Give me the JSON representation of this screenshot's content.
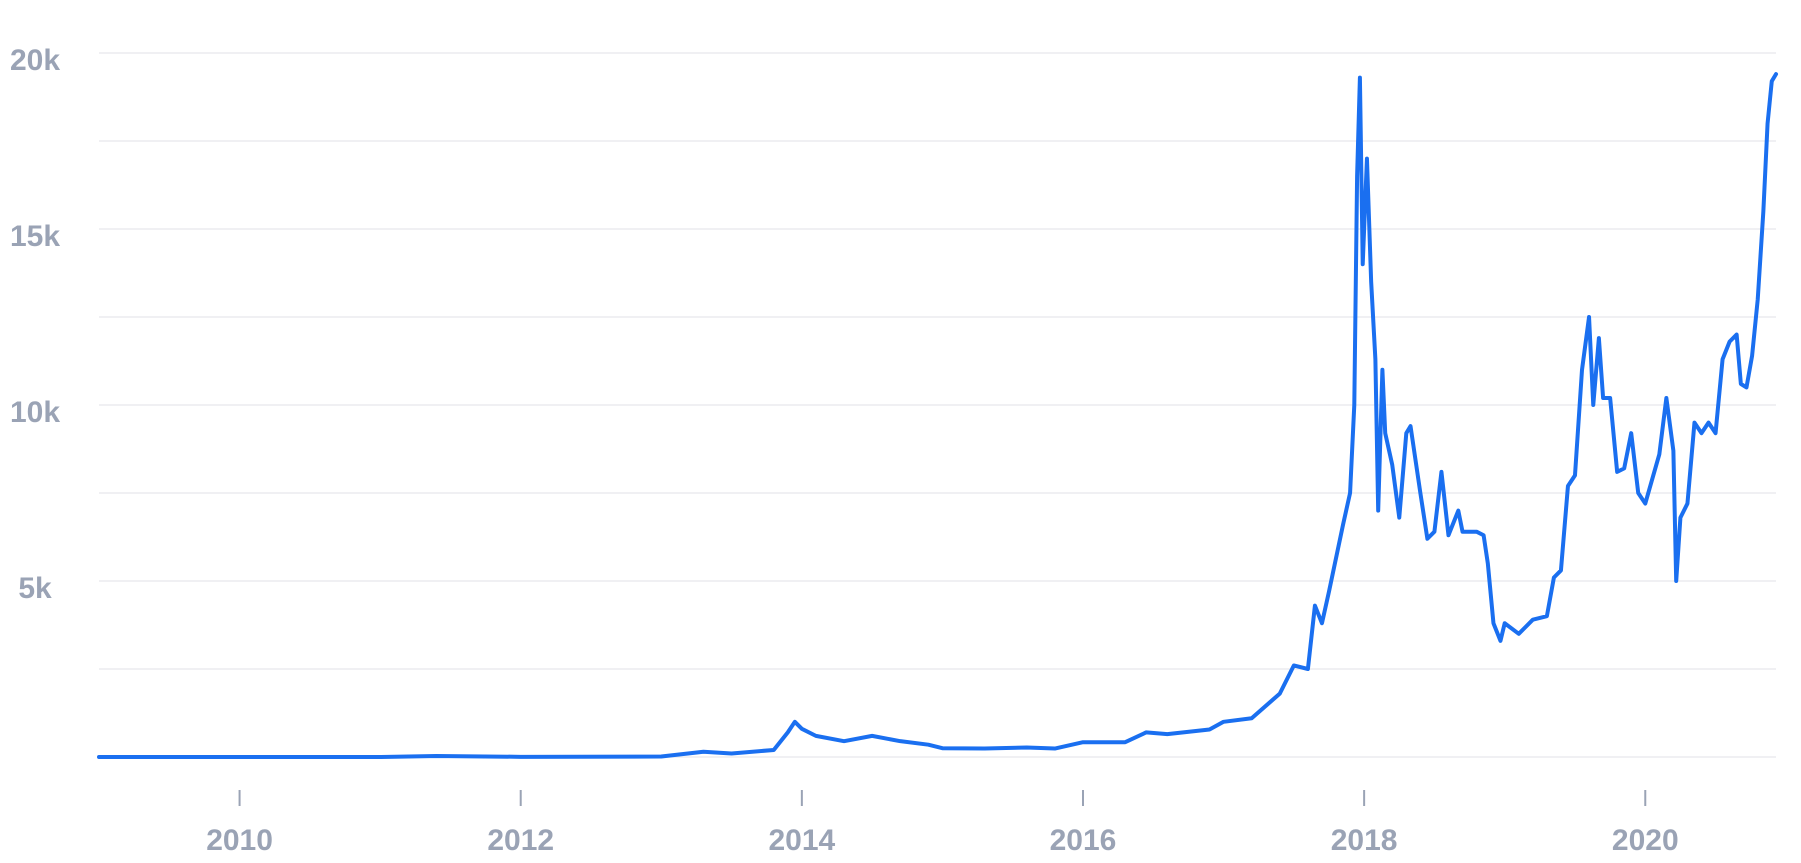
{
  "chart_data": {
    "type": "line",
    "color": "#1a6ff0",
    "x": [
      2009.0,
      2010.0,
      2011.0,
      2011.4,
      2012.0,
      2013.0,
      2013.3,
      2013.5,
      2013.8,
      2013.9,
      2013.95,
      2014.0,
      2014.1,
      2014.3,
      2014.5,
      2014.7,
      2014.9,
      2015.0,
      2015.3,
      2015.6,
      2015.8,
      2016.0,
      2016.3,
      2016.45,
      2016.6,
      2016.9,
      2017.0,
      2017.2,
      2017.4,
      2017.5,
      2017.6,
      2017.65,
      2017.7,
      2017.75,
      2017.85,
      2017.9,
      2017.93,
      2017.95,
      2017.97,
      2017.99,
      2018.02,
      2018.05,
      2018.08,
      2018.1,
      2018.13,
      2018.15,
      2018.2,
      2018.25,
      2018.3,
      2018.33,
      2018.4,
      2018.45,
      2018.5,
      2018.55,
      2018.6,
      2018.67,
      2018.7,
      2018.8,
      2018.85,
      2018.88,
      2018.92,
      2018.97,
      2019.0,
      2019.1,
      2019.2,
      2019.3,
      2019.35,
      2019.4,
      2019.45,
      2019.5,
      2019.55,
      2019.6,
      2019.63,
      2019.67,
      2019.7,
      2019.75,
      2019.8,
      2019.85,
      2019.9,
      2019.95,
      2020.0,
      2020.1,
      2020.15,
      2020.2,
      2020.22,
      2020.25,
      2020.3,
      2020.35,
      2020.4,
      2020.45,
      2020.5,
      2020.55,
      2020.6,
      2020.65,
      2020.68,
      2020.72,
      2020.76,
      2020.8,
      2020.84,
      2020.87,
      2020.9,
      2020.93
    ],
    "values": [
      0,
      0,
      0,
      30,
      5,
      13,
      150,
      100,
      200,
      700,
      1000,
      800,
      600,
      450,
      600,
      450,
      350,
      250,
      240,
      270,
      240,
      420,
      420,
      700,
      650,
      780,
      1000,
      1100,
      1800,
      2600,
      2500,
      4300,
      3800,
      4700,
      6600,
      7500,
      10000,
      16500,
      19300,
      14000,
      17000,
      13500,
      11300,
      7000,
      11000,
      9200,
      8300,
      6800,
      9200,
      9400,
      7500,
      6200,
      6400,
      8100,
      6300,
      7000,
      6400,
      6400,
      6300,
      5500,
      3800,
      3300,
      3800,
      3500,
      3900,
      4000,
      5100,
      5300,
      7700,
      8000,
      11000,
      12500,
      10000,
      11900,
      10200,
      10200,
      8100,
      8200,
      9200,
      7500,
      7200,
      8600,
      10200,
      8700,
      5000,
      6800,
      7200,
      9500,
      9200,
      9500,
      9200,
      11300,
      11800,
      12000,
      10600,
      10500,
      11400,
      13000,
      15500,
      18000,
      19200,
      19400
    ],
    "xlim": [
      2009.0,
      2020.93
    ],
    "xticks": [
      2010,
      2012,
      2014,
      2016,
      2018,
      2020
    ],
    "ylim": [
      0,
      20000
    ],
    "yticks": [
      {
        "value": 5000,
        "label": "5k"
      },
      {
        "value": 10000,
        "label": "10k"
      },
      {
        "value": 15000,
        "label": "15k"
      },
      {
        "value": 20000,
        "label": "20k"
      }
    ],
    "grid_lines": [
      0,
      2500,
      5000,
      7500,
      10000,
      12500,
      15000,
      17500,
      20000
    ]
  }
}
